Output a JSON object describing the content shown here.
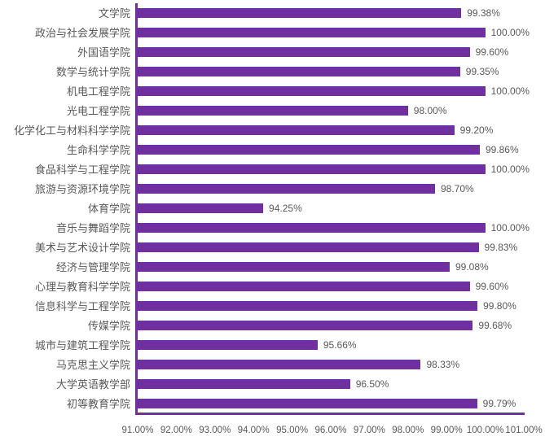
{
  "chart_data": {
    "type": "bar",
    "orientation": "horizontal",
    "title": "",
    "xlabel": "",
    "ylabel": "",
    "xlim": [
      91,
      101
    ],
    "grid": false,
    "legend": false,
    "bar_color": "#7030A0",
    "axis_color": "#7030A0",
    "label_color": "#595959",
    "x_tick_labels": [
      "91.00%",
      "92.00%",
      "93.00%",
      "94.00%",
      "95.00%",
      "96.00%",
      "97.00%",
      "98.00%",
      "99.00%",
      "100.00%",
      "101.00%"
    ],
    "categories": [
      "文学院",
      "政治与社会发展学院",
      "外国语学院",
      "数学与统计学院",
      "机电工程学院",
      "光电工程学院",
      "化学化工与材料科学学院",
      "生命科学学院",
      "食品科学与工程学院",
      "旅游与资源环境学院",
      "体育学院",
      "音乐与舞蹈学院",
      "美术与艺术设计学院",
      "经济与管理学院",
      "心理与教育科学学院",
      "信息科学与工程学院",
      "传媒学院",
      "城市与建筑工程学院",
      "马克思主义学院",
      "大学英语教学部",
      "初等教育学院"
    ],
    "values": [
      99.38,
      100.0,
      99.6,
      99.35,
      100.0,
      98.0,
      99.2,
      99.86,
      100.0,
      98.7,
      94.25,
      100.0,
      99.83,
      99.08,
      99.6,
      99.8,
      99.68,
      95.66,
      98.33,
      96.5,
      99.79
    ],
    "value_labels": [
      "99.38%",
      "100.00%",
      "99.60%",
      "99.35%",
      "100.00%",
      "98.00%",
      "99.20%",
      "99.86%",
      "100.00%",
      "98.70%",
      "94.25%",
      "100.00%",
      "99.83%",
      "99.08%",
      "99.60%",
      "99.80%",
      "99.68%",
      "95.66%",
      "98.33%",
      "96.50%",
      "99.79%"
    ]
  }
}
